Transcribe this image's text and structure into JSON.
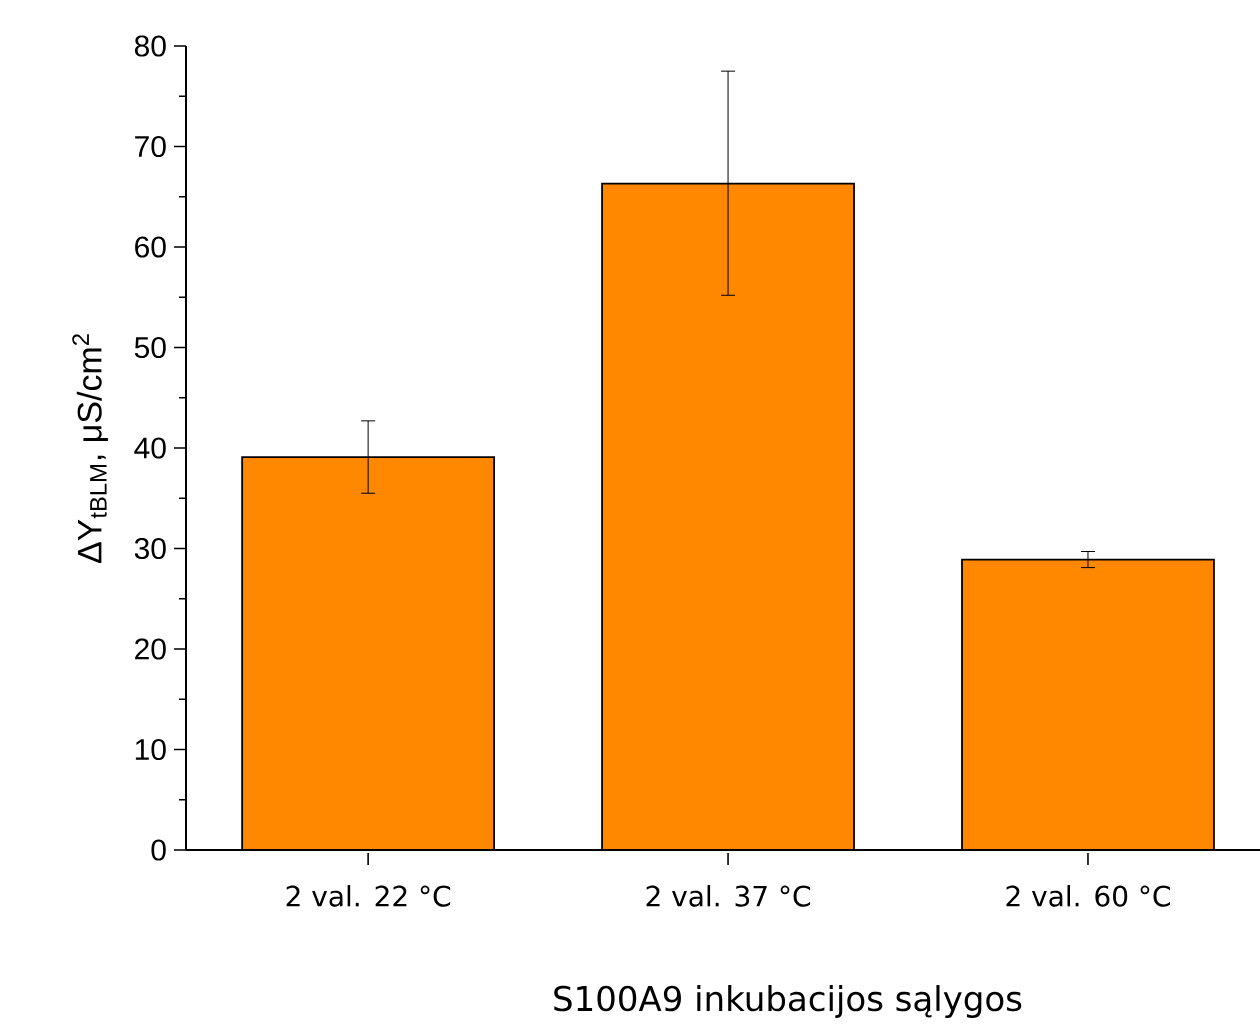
{
  "chart_data": {
    "type": "bar",
    "xlabel": "S100A9 inkubacijos sąlygos",
    "ylabel": "ΔY$_{tBLM}$, μS/cm$^{2}$",
    "categories": [
      "2 val. 22 °C",
      "2 val. 37 °C",
      "2 val. 60 °C"
    ],
    "values": [
      39.1,
      66.3,
      28.9
    ],
    "errors": [
      [
        35.5,
        42.7
      ],
      [
        55.2,
        77.5
      ],
      [
        28.1,
        29.7
      ]
    ],
    "color": "#ff8800",
    "ylim": [
      0,
      80
    ],
    "yticks": [
      0,
      {
        "value": 5,
        "label": null
      },
      10,
      {
        "value": 15,
        "label": null
      },
      20,
      {
        "value": 25,
        "label": null
      },
      30,
      {
        "value": 35,
        "label": null
      },
      40,
      {
        "value": 45,
        "label": null
      },
      50,
      {
        "value": 55,
        "label": null
      },
      60,
      {
        "value": 65,
        "label": null
      },
      70,
      {
        "value": 75,
        "label": null
      },
      80
    ],
    "grid": false
  }
}
